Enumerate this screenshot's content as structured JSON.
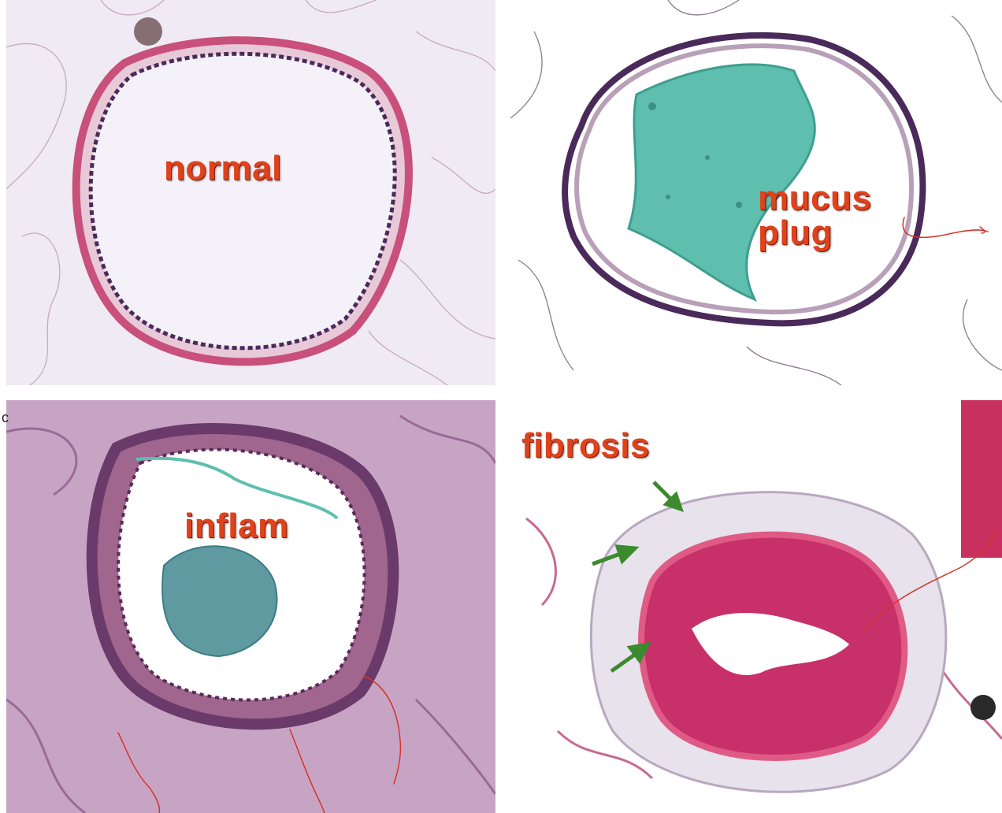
{
  "panels": {
    "normal": {
      "label": "normal"
    },
    "mucus": {
      "label_line1": "mucus",
      "label_line2": "plug"
    },
    "inflam": {
      "label": "inflam",
      "corner_letter": "c"
    },
    "fibrosis": {
      "label": "fibrosis"
    }
  },
  "colors": {
    "label_text": "#e0421c",
    "annotation_ink": "#d2352a",
    "fibrosis_arrow": "#3c8a2e",
    "mucus_stain": "#5fbfae",
    "epithelium": "#4a2a5a",
    "smooth_muscle": "#c8507a"
  }
}
